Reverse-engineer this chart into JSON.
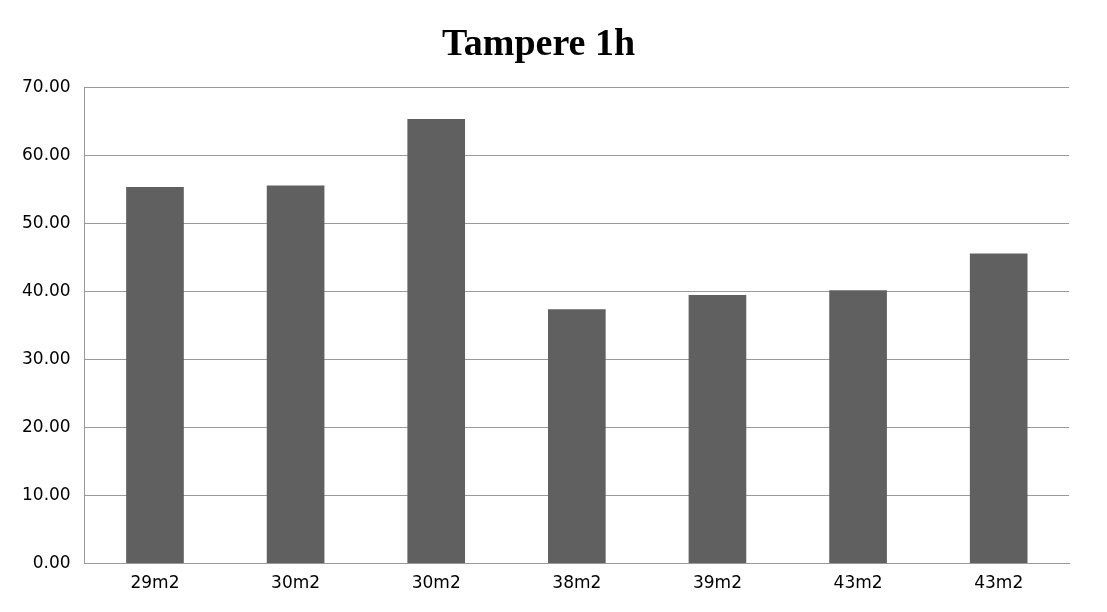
{
  "chart_data": {
    "type": "bar",
    "title": "Tampere 1h",
    "categories": [
      "29m2",
      "30m2",
      "30m2",
      "38m2",
      "39m2",
      "43m2",
      "43m2"
    ],
    "values": [
      55.4,
      55.6,
      65.4,
      37.4,
      39.5,
      40.2,
      45.6
    ],
    "color": "#606060",
    "ylim": [
      0,
      70
    ],
    "yticks": [
      {
        "value": 0,
        "label": "0.00"
      },
      {
        "value": 10,
        "label": "10.00"
      },
      {
        "value": 20,
        "label": "20.00"
      },
      {
        "value": 30,
        "label": "30.00"
      },
      {
        "value": 40,
        "label": "40.00"
      },
      {
        "value": 50,
        "label": "50.00"
      },
      {
        "value": 60,
        "label": "60.00"
      },
      {
        "value": 70,
        "label": "70.00"
      }
    ],
    "grid": "y",
    "legend": false
  }
}
